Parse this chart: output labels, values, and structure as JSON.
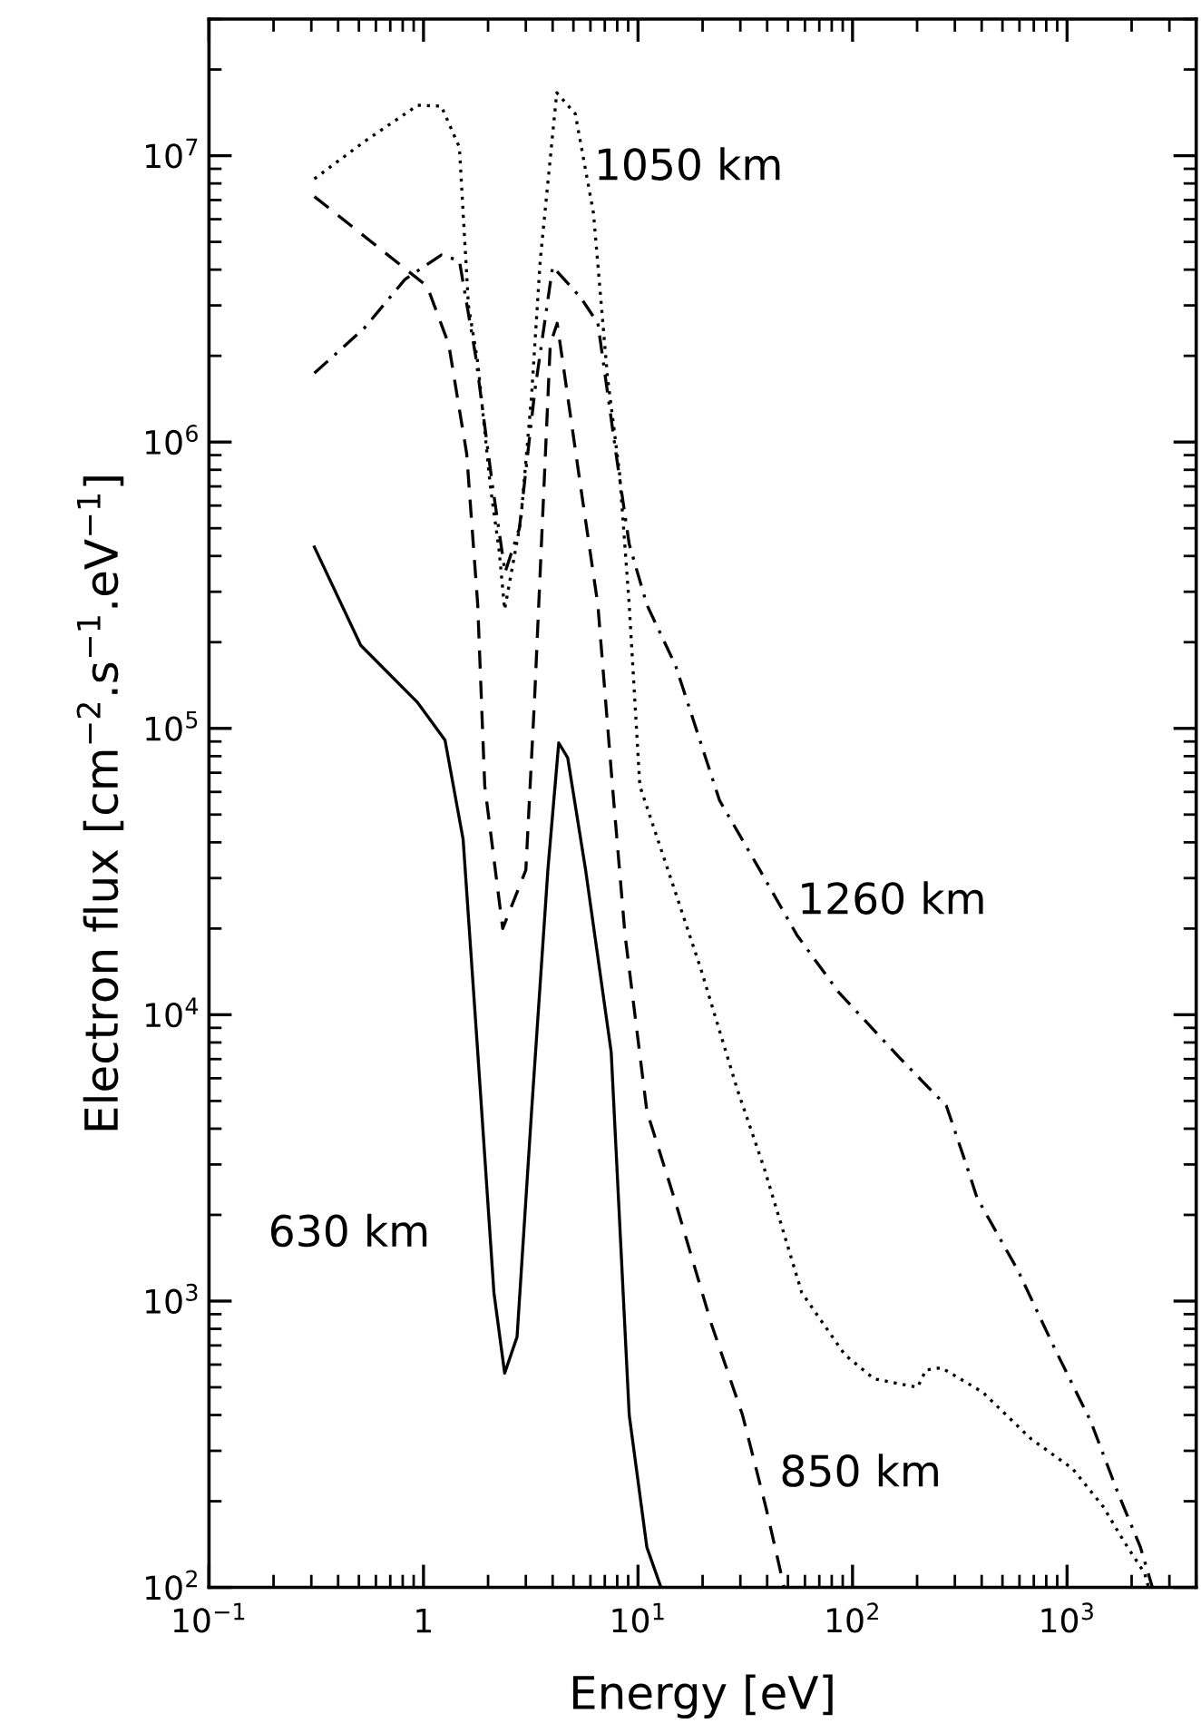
{
  "chart_data": {
    "type": "line",
    "xlabel": "Energy [eV]",
    "ylabel": "Electron flux [cm$^{−2}$.s$^{−1}$.eV$^{−1}$]",
    "log": "xy",
    "xlim": [
      0.1,
      4000
    ],
    "ylim": [
      100,
      30000000
    ],
    "xticks": [
      {
        "value": 0.1,
        "label": "10$^{−1}$"
      },
      {
        "value": 1,
        "label": "1"
      },
      {
        "value": 10,
        "label": "10$^{1}$"
      },
      {
        "value": 100,
        "label": "10$^{2}$"
      },
      {
        "value": 1000,
        "label": "10$^{3}$"
      }
    ],
    "yticks": [
      {
        "value": 100,
        "label": "10$^{2}$"
      },
      {
        "value": 1000,
        "label": "10$^{3}$"
      },
      {
        "value": 10000,
        "label": "10$^{4}$"
      },
      {
        "value": 100000,
        "label": "10$^{5}$"
      },
      {
        "value": 1000000,
        "label": "10$^{6}$"
      },
      {
        "value": 10000000,
        "label": "10$^{7}$"
      }
    ],
    "grid": false,
    "legend": false,
    "marker": "none",
    "series": [
      {
        "name": "630 km",
        "color": "#000000",
        "line_style": "solid",
        "x": [
          0.31,
          0.51,
          0.94,
          1.26,
          1.53,
          1.79,
          2.13,
          2.39,
          2.73,
          3.19,
          3.8,
          4.27,
          4.7,
          5.7,
          7.5,
          9.1,
          11,
          12.8
        ],
        "values": [
          430000,
          195000,
          123000,
          91000,
          41000,
          7400,
          1070,
          560,
          750,
          4600,
          32000,
          89000,
          79000,
          32000,
          7400,
          400,
          138,
          100
        ]
      },
      {
        "name": "850 km",
        "color": "#000000",
        "line_style": "dashed",
        "x": [
          0.31,
          1.04,
          1.31,
          1.59,
          1.79,
          1.93,
          2.34,
          3.0,
          3.3,
          3.9,
          4.2,
          5.4,
          6.5,
          7.6,
          8.7,
          11,
          15,
          22,
          30.7,
          39.5,
          48
        ],
        "values": [
          7200000,
          3500000,
          2200000,
          910000,
          270000,
          63000,
          20000,
          32000,
          130000,
          2200000,
          2600000,
          700000,
          270000,
          63000,
          19000,
          4600,
          2200,
          830,
          400,
          190,
          100
        ]
      },
      {
        "name": "1050 km",
        "color": "#000000",
        "line_style": "dotted",
        "x": [
          0.31,
          0.53,
          0.94,
          1.21,
          1.47,
          1.62,
          1.79,
          2.05,
          2.25,
          2.39,
          2.84,
          3.19,
          3.5,
          4.18,
          5.1,
          6.2,
          7.2,
          8.2,
          9.1,
          10.2,
          14.2,
          19.6,
          29,
          38.8,
          58,
          92,
          126,
          201,
          220,
          260,
          405,
          680,
          1060,
          1470,
          1850,
          2300,
          2400
        ],
        "values": [
          8300000,
          11200000,
          15000000,
          14900000,
          10700000,
          3000000,
          1900000,
          700000,
          420000,
          260000,
          530000,
          1450000,
          4300000,
          16600000,
          14000000,
          6300000,
          1700000,
          780000,
          270000,
          63000,
          30000,
          14500,
          5500,
          2900,
          1070,
          650,
          535,
          500,
          575,
          585,
          480,
          330,
          260,
          192,
          144,
          112,
          100
        ]
      },
      {
        "name": "1260 km",
        "color": "#000000",
        "line_style": "dashdot",
        "x": [
          0.31,
          0.53,
          0.82,
          1.21,
          1.47,
          1.75,
          2.1,
          2.4,
          2.8,
          3.3,
          4.0,
          5.4,
          6.5,
          7.9,
          9.1,
          11,
          15,
          19.7,
          24,
          37,
          55,
          86,
          165,
          274,
          344,
          380,
          590,
          870,
          1290,
          1730,
          2200,
          2500
        ],
        "values": [
          1740000,
          2500000,
          3700000,
          4500000,
          4300000,
          2000000,
          700000,
          350000,
          500000,
          1500000,
          4100000,
          3200000,
          2600000,
          910000,
          440000,
          270000,
          165000,
          88000,
          56000,
          32000,
          19000,
          12000,
          7100,
          4800,
          2900,
          2300,
          1280,
          690,
          380,
          213,
          138,
          100
        ]
      }
    ]
  }
}
